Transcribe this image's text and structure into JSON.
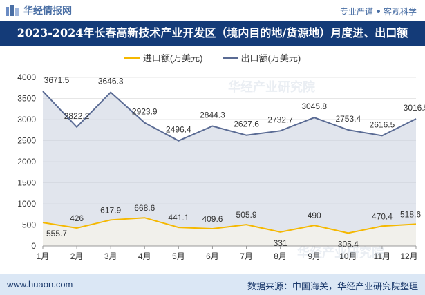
{
  "header": {
    "brand": "华经情报网",
    "tagline_left": "专业严谨",
    "tagline_right": "客观科学"
  },
  "chart_data": {
    "type": "line",
    "title": "2023-2024年长春高新技术产业开发区（境内目的地/货源地）月度进、出口额",
    "categories": [
      "1月",
      "2月",
      "3月",
      "4月",
      "5月",
      "6月",
      "7月",
      "8月",
      "9月",
      "10月",
      "11月",
      "12月"
    ],
    "series": [
      {
        "name": "进口额(万美元)",
        "color": "#f5b800",
        "values": [
          555.7,
          426,
          617.9,
          668.6,
          441.1,
          409.6,
          505.9,
          331,
          490,
          305.4,
          470.4,
          518.6
        ]
      },
      {
        "name": "出口额(万美元)",
        "color": "#5a6b94",
        "values": [
          3671.5,
          2822.2,
          3646.3,
          2923.9,
          2496.4,
          2844.3,
          2627.6,
          2732.7,
          3045.8,
          2753.4,
          2616.5,
          3016.5
        ]
      }
    ],
    "yticks": [
      0,
      500,
      1000,
      1500,
      2000,
      2500,
      3000,
      3500,
      4000
    ],
    "ylim": [
      0,
      4000
    ],
    "legend_position": "top"
  },
  "watermarks": [
    "华经产业研究院",
    "华经产业研究院"
  ],
  "footer": {
    "site": "www.huaon.com",
    "source": "数据来源：中国海关，华经产业研究院整理"
  }
}
